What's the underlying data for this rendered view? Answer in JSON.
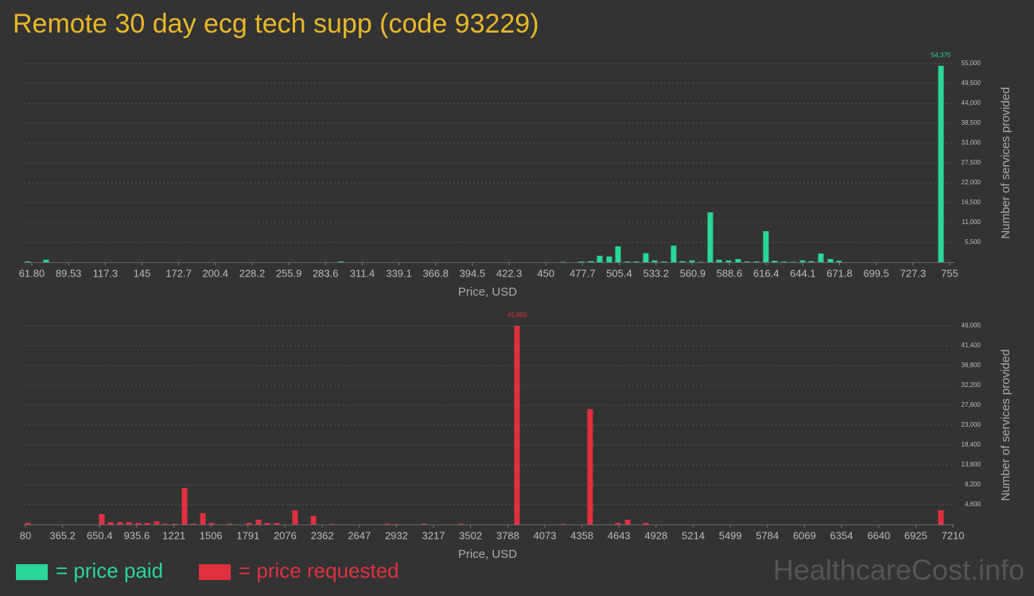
{
  "title": "Remote 30 day ecg tech supp (code 93229)",
  "watermark": "HealthcareCost.info",
  "chart_data": [
    {
      "type": "bar",
      "xlabel": "Price, USD",
      "ylabel": "Number of services provided",
      "grid": true,
      "x": [
        58.8,
        72.6,
        295.5,
        463.1,
        476.9,
        484.1,
        490.7,
        497.9,
        504.5,
        511.7,
        518.3,
        525.5,
        532.1,
        539.3,
        546.5,
        553.2,
        560.4,
        567.0,
        574.2,
        580.8,
        588.0,
        595.2,
        601.8,
        609.0,
        616.2,
        622.8,
        630.0,
        636.7,
        643.9,
        650.5,
        657.7,
        664.9,
        671.5,
        748.4
      ],
      "series": [
        {
          "name": "= price paid",
          "color": "#2ad698",
          "values": [
            200,
            700,
            200,
            100,
            200,
            300,
            1800,
            1600,
            4400,
            200,
            200,
            2500,
            500,
            200,
            4600,
            300,
            500,
            100,
            13800,
            700,
            500,
            900,
            200,
            200,
            8600,
            400,
            200,
            100,
            500,
            300,
            2400,
            900,
            400,
            54375
          ],
          "value_labels": [
            null,
            null,
            null,
            null,
            null,
            null,
            null,
            null,
            null,
            null,
            null,
            null,
            null,
            null,
            null,
            null,
            null,
            null,
            null,
            null,
            null,
            null,
            null,
            null,
            null,
            null,
            null,
            null,
            null,
            null,
            null,
            null,
            null,
            "54,375"
          ]
        }
      ],
      "xlim": [
        54.6,
        757.4
      ],
      "xticks": [
        {
          "value": 61.8,
          "label": "61.80"
        },
        89.53,
        117.3,
        145,
        172.7,
        200.4,
        228.2,
        255.9,
        283.6,
        311.4,
        339.1,
        366.8,
        394.5,
        422.3,
        450,
        477.7,
        505.4,
        533.2,
        560.9,
        588.6,
        616.4,
        644.1,
        671.8,
        699.5,
        727.3,
        755
      ],
      "ylim": [
        0,
        55000
      ],
      "yticks": [
        {
          "value": 5500,
          "label": "5,500"
        },
        {
          "value": 11000,
          "label": "11,000"
        },
        {
          "value": 16500,
          "label": "16,500"
        },
        {
          "value": 22000,
          "label": "22,000"
        },
        {
          "value": 27500,
          "label": "27,500"
        },
        {
          "value": 33000,
          "label": "33,000"
        },
        {
          "value": 38500,
          "label": "38,500"
        },
        {
          "value": 44000,
          "label": "44,000"
        },
        {
          "value": 49500,
          "label": "49,500"
        },
        {
          "value": 55000,
          "label": "55,000"
        }
      ]
    },
    {
      "type": "bar",
      "xlabel": "Price, USD",
      "ylabel": "Number of services provided",
      "grid": true,
      "x": [
        98,
        667,
        734,
        808,
        875,
        948,
        1016,
        1089,
        1156,
        1230,
        1303,
        1370,
        1444,
        1511,
        1651,
        1798,
        1872,
        1939,
        2012,
        2153,
        2294,
        2434,
        2862,
        2929,
        3144,
        3431,
        3859,
        4214,
        4421,
        4635,
        4709,
        4849,
        7118
      ],
      "series": [
        {
          "name": "= price requested",
          "color": "#e03040",
          "values": [
            370,
            2400,
            550,
            550,
            550,
            370,
            370,
            740,
            180,
            180,
            8470,
            180,
            2600,
            370,
            180,
            370,
            1100,
            370,
            370,
            3300,
            2000,
            100,
            180,
            100,
            180,
            180,
            45990,
            100,
            26700,
            370,
            1100,
            370,
            3300
          ],
          "value_labels": [
            null,
            null,
            null,
            null,
            null,
            null,
            null,
            null,
            null,
            null,
            null,
            null,
            null,
            null,
            null,
            null,
            null,
            null,
            null,
            null,
            null,
            null,
            null,
            null,
            null,
            null,
            "45,990",
            null,
            null,
            null,
            null,
            null,
            null
          ]
        }
      ],
      "xlim": [
        55.5,
        7210
      ],
      "xticks": [
        80,
        365.2,
        650.4,
        935.6,
        1221,
        1506,
        1791,
        2076,
        2362,
        2647,
        2932,
        3217,
        3502,
        3788,
        4073,
        4358,
        4643,
        4928,
        5214,
        5499,
        5784,
        6069,
        6354,
        6640,
        6925,
        7210
      ],
      "ylim": [
        0,
        46000
      ],
      "yticks": [
        {
          "value": 4600,
          "label": "4,600"
        },
        {
          "value": 9200,
          "label": "9,200"
        },
        {
          "value": 13800,
          "label": "13,800"
        },
        {
          "value": 18400,
          "label": "18,400"
        },
        {
          "value": 23000,
          "label": "23,000"
        },
        {
          "value": 27600,
          "label": "27,600"
        },
        {
          "value": 32200,
          "label": "32,200"
        },
        {
          "value": 36800,
          "label": "36,800"
        },
        {
          "value": 41400,
          "label": "41,400"
        },
        {
          "value": 46000,
          "label": "46,000"
        }
      ]
    }
  ]
}
